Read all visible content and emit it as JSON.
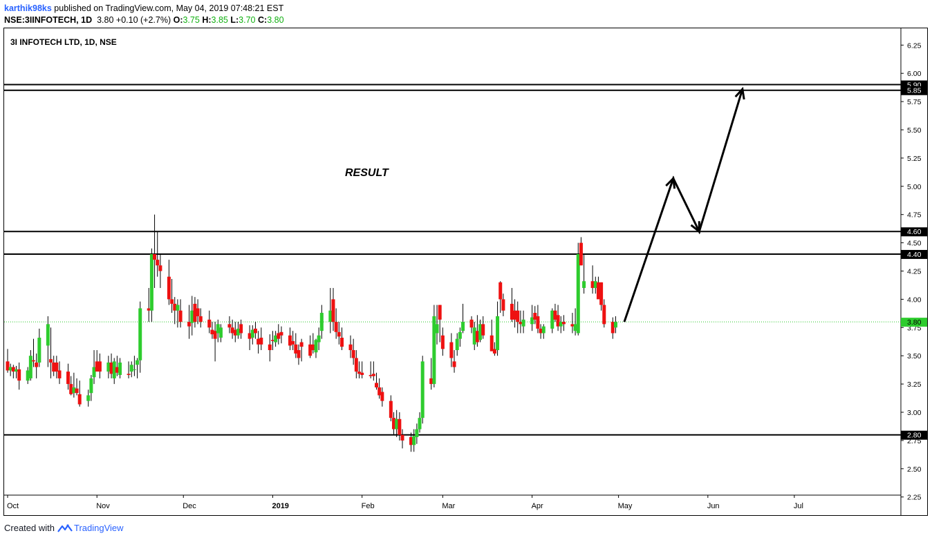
{
  "header": {
    "author": "karthik98ks",
    "published_text": "published on TradingView.com, May 04, 2019 07:48:21 EST",
    "symbol_line": "NSE:3IINFOTECH, 1D",
    "last": "3.80",
    "change": "+0.10 (+2.7%)",
    "ohlc": [
      {
        "k": "O:",
        "v": "3.75"
      },
      {
        "k": "H:",
        "v": "3.85"
      },
      {
        "k": "L:",
        "v": "3.70"
      },
      {
        "k": "C:",
        "v": "3.80"
      }
    ]
  },
  "footer": {
    "created_with": "Created with",
    "brand": "TradingView",
    "logo_icon": "tradingview-logo-icon"
  },
  "colors": {
    "up": "#2ecc2e",
    "down": "#ee1111",
    "price_line": "#26c626",
    "level_line": "#000000",
    "author": "#2962ff"
  },
  "chart_data": {
    "type": "candlestick",
    "title": "3I INFOTECH LTD, 1D, NSE",
    "annotation": "RESULT",
    "ylim": [
      2.2,
      6.32
    ],
    "y_ticks": [
      "2.25",
      "2.50",
      "2.75",
      "3.00",
      "3.25",
      "3.50",
      "3.75",
      "4.00",
      "4.25",
      "4.50",
      "4.75",
      "5.00",
      "5.25",
      "5.50",
      "5.75",
      "6.00",
      "6.25"
    ],
    "x_ticks": [
      {
        "label": "Oct",
        "day": 0
      },
      {
        "label": "Nov",
        "day": 31
      },
      {
        "label": "Dec",
        "day": 61
      },
      {
        "label": "2019",
        "day": 92,
        "bold": true
      },
      {
        "label": "Feb",
        "day": 123
      },
      {
        "label": "Mar",
        "day": 151
      },
      {
        "label": "Apr",
        "day": 182
      },
      {
        "label": "May",
        "day": 212
      },
      {
        "label": "Jun",
        "day": 243
      },
      {
        "label": "Jul",
        "day": 273
      }
    ],
    "horizontal_levels": [
      5.9,
      5.85,
      4.6,
      4.4,
      2.8
    ],
    "level_labels": [
      "5.90",
      "5.85",
      "4.60",
      "4.40",
      "2.80"
    ],
    "last_price": 3.8,
    "last_price_label": "3.80",
    "projection_path": [
      {
        "date": "2019-05-03",
        "value": 3.8
      },
      {
        "date": "2019-05-20",
        "value": 5.07
      },
      {
        "date": "2019-05-29",
        "value": 4.6
      },
      {
        "date": "2019-06-13",
        "value": 5.86
      }
    ],
    "candles_ohlc": [
      [
        3.45,
        3.56,
        3.35,
        3.37
      ],
      [
        3.37,
        3.43,
        3.32,
        3.4
      ],
      [
        3.4,
        3.42,
        3.3,
        3.36
      ],
      [
        3.36,
        3.41,
        3.3,
        3.38
      ],
      [
        3.38,
        3.44,
        3.2,
        3.28
      ],
      [
        3.28,
        3.4,
        3.25,
        3.37
      ],
      [
        3.3,
        3.55,
        3.28,
        3.5
      ],
      [
        3.46,
        3.65,
        3.4,
        3.45
      ],
      [
        3.44,
        3.52,
        3.3,
        3.4
      ],
      [
        3.44,
        3.74,
        3.4,
        3.66
      ],
      [
        3.59,
        3.85,
        3.4,
        3.78
      ],
      [
        3.47,
        3.75,
        3.3,
        3.44
      ],
      [
        3.44,
        3.5,
        3.32,
        3.36
      ],
      [
        3.44,
        3.5,
        3.3,
        3.36
      ],
      [
        3.37,
        3.45,
        3.25,
        3.3
      ],
      [
        3.36,
        3.43,
        3.2,
        3.25
      ],
      [
        3.25,
        3.32,
        3.15,
        3.16
      ],
      [
        3.17,
        3.35,
        3.13,
        3.22
      ],
      [
        3.21,
        3.3,
        3.15,
        3.17
      ],
      [
        3.16,
        3.28,
        3.05,
        3.07
      ],
      [
        3.1,
        3.2,
        3.05,
        3.15
      ],
      [
        3.17,
        3.33,
        3.1,
        3.3
      ],
      [
        3.31,
        3.55,
        3.25,
        3.4
      ],
      [
        3.45,
        3.55,
        3.38,
        3.36
      ],
      [
        3.45,
        3.52,
        3.3,
        3.36
      ],
      [
        3.36,
        3.5,
        3.3,
        3.44
      ],
      [
        3.44,
        3.52,
        3.3,
        3.34
      ],
      [
        3.3,
        3.48,
        3.25,
        3.45
      ],
      [
        3.4,
        3.5,
        3.32,
        3.35
      ],
      [
        3.33,
        3.48,
        3.3,
        3.44
      ],
      [
        3.34,
        3.45,
        3.3,
        3.33
      ],
      [
        3.36,
        3.45,
        3.31,
        3.42
      ],
      [
        3.38,
        3.5,
        3.32,
        3.38
      ],
      [
        3.42,
        3.48,
        3.3,
        3.46
      ],
      [
        3.46,
        3.98,
        3.35,
        3.92
      ],
      [
        3.92,
        4.1,
        3.8,
        3.9
      ],
      [
        3.9,
        4.45,
        3.8,
        4.4
      ],
      [
        4.4,
        4.75,
        4.1,
        4.35
      ],
      [
        4.35,
        4.6,
        4.2,
        4.3
      ],
      [
        4.3,
        4.4,
        4.1,
        4.25
      ],
      [
        4.2,
        4.35,
        3.95,
        4.0
      ],
      [
        4.0,
        4.18,
        3.88,
        3.96
      ],
      [
        3.96,
        4.02,
        3.78,
        3.9
      ],
      [
        3.9,
        4.0,
        3.75,
        3.95
      ],
      [
        3.9,
        4.0,
        3.75,
        3.8
      ],
      [
        3.8,
        3.95,
        3.65,
        3.76
      ],
      [
        3.79,
        4.03,
        3.68,
        3.9
      ],
      [
        3.96,
        4.02,
        3.75,
        3.8
      ],
      [
        3.92,
        4.0,
        3.78,
        3.85
      ],
      [
        3.85,
        3.92,
        3.75,
        3.8
      ],
      [
        3.82,
        3.9,
        3.7,
        3.75
      ],
      [
        3.73,
        3.8,
        3.65,
        3.69
      ],
      [
        3.72,
        3.8,
        3.45,
        3.65
      ],
      [
        3.7,
        3.82,
        3.62,
        3.78
      ],
      [
        3.66,
        3.78,
        3.62,
        3.75
      ],
      [
        3.78,
        3.85,
        3.7,
        3.75
      ],
      [
        3.75,
        3.82,
        3.65,
        3.7
      ],
      [
        3.73,
        3.8,
        3.62,
        3.68
      ],
      [
        3.68,
        3.8,
        3.65,
        3.74
      ],
      [
        3.78,
        3.82,
        3.65,
        3.7
      ],
      [
        3.7,
        3.77,
        3.55,
        3.65
      ],
      [
        3.66,
        3.77,
        3.6,
        3.73
      ],
      [
        3.74,
        3.8,
        3.65,
        3.7
      ],
      [
        3.65,
        3.72,
        3.52,
        3.6
      ],
      [
        3.66,
        3.75,
        3.55,
        3.6
      ],
      [
        3.6,
        3.69,
        3.45,
        3.55
      ],
      [
        3.64,
        3.72,
        3.55,
        3.63
      ],
      [
        3.62,
        3.72,
        3.58,
        3.68
      ],
      [
        3.7,
        3.78,
        3.6,
        3.65
      ],
      [
        3.71,
        3.76,
        3.61,
        3.68
      ],
      [
        3.68,
        3.75,
        3.55,
        3.59
      ],
      [
        3.63,
        3.72,
        3.55,
        3.6
      ],
      [
        3.6,
        3.7,
        3.48,
        3.52
      ],
      [
        3.55,
        3.6,
        3.42,
        3.48
      ],
      [
        3.62,
        3.65,
        3.45,
        3.58
      ],
      [
        3.6,
        3.68,
        3.48,
        3.5
      ],
      [
        3.6,
        3.7,
        3.52,
        3.55
      ],
      [
        3.53,
        3.65,
        3.48,
        3.64
      ],
      [
        3.62,
        3.75,
        3.55,
        3.68
      ],
      [
        3.72,
        3.95,
        3.65,
        3.88
      ],
      [
        3.8,
        4.1,
        3.7,
        3.9
      ],
      [
        4.0,
        4.1,
        3.72,
        3.8
      ],
      [
        3.8,
        3.92,
        3.65,
        3.71
      ],
      [
        3.71,
        3.8,
        3.6,
        3.67
      ],
      [
        3.66,
        3.75,
        3.55,
        3.58
      ],
      [
        3.6,
        3.68,
        3.48,
        3.55
      ],
      [
        3.55,
        3.65,
        3.42,
        3.48
      ],
      [
        3.48,
        3.55,
        3.3,
        3.36
      ],
      [
        3.36,
        3.45,
        3.3,
        3.34
      ],
      [
        3.35,
        3.45,
        3.3,
        3.33
      ],
      [
        3.33,
        3.45,
        3.3,
        3.32
      ],
      [
        3.34,
        3.45,
        3.28,
        3.32
      ],
      [
        3.26,
        3.35,
        3.2,
        3.22
      ],
      [
        3.22,
        3.3,
        3.12,
        3.15
      ],
      [
        3.18,
        3.22,
        3.05,
        3.1
      ],
      [
        3.1,
        3.15,
        2.92,
        2.95
      ],
      [
        2.95,
        3.0,
        2.8,
        2.85
      ],
      [
        2.85,
        3.02,
        2.78,
        2.94
      ],
      [
        2.94,
        3.0,
        2.75,
        2.8
      ],
      [
        2.8,
        2.85,
        2.68,
        2.75
      ],
      [
        2.78,
        2.82,
        2.65,
        2.71
      ],
      [
        2.71,
        2.85,
        2.65,
        2.79
      ],
      [
        2.78,
        2.9,
        2.72,
        2.85
      ],
      [
        2.85,
        3.0,
        2.82,
        2.95
      ],
      [
        2.95,
        3.5,
        2.9,
        3.45
      ],
      [
        3.3,
        3.48,
        3.2,
        3.25
      ],
      [
        3.25,
        3.95,
        3.22,
        3.85
      ],
      [
        3.7,
        3.95,
        3.6,
        3.78
      ],
      [
        3.95,
        3.95,
        3.62,
        3.82
      ],
      [
        3.68,
        3.75,
        3.5,
        3.56
      ],
      [
        3.62,
        3.7,
        3.4,
        3.48
      ],
      [
        3.45,
        3.55,
        3.35,
        3.4
      ],
      [
        3.55,
        3.7,
        3.5,
        3.65
      ],
      [
        3.65,
        3.75,
        3.58,
        3.71
      ],
      [
        3.72,
        3.96,
        3.7,
        3.8
      ],
      [
        3.82,
        3.85,
        3.7,
        3.75
      ],
      [
        3.6,
        3.8,
        3.55,
        3.75
      ],
      [
        3.72,
        3.86,
        3.58,
        3.62
      ],
      [
        3.64,
        3.82,
        3.62,
        3.78
      ],
      [
        3.78,
        3.85,
        3.65,
        3.68
      ],
      [
        3.68,
        3.82,
        3.6,
        3.54
      ],
      [
        3.56,
        3.62,
        3.5,
        3.52
      ],
      [
        3.55,
        3.98,
        3.5,
        3.85
      ],
      [
        4.15,
        4.16,
        3.88,
        4.0
      ],
      [
        4.0,
        4.05,
        3.85,
        3.9
      ],
      [
        3.96,
        4.1,
        3.8,
        3.82
      ],
      [
        3.9,
        4.0,
        3.75,
        3.82
      ],
      [
        3.9,
        3.98,
        3.7,
        3.8
      ],
      [
        3.8,
        3.9,
        3.7,
        3.78
      ],
      [
        3.76,
        3.9,
        3.7,
        3.82
      ],
      [
        3.78,
        3.95,
        3.72,
        3.84
      ],
      [
        3.88,
        3.94,
        3.78,
        3.82
      ],
      [
        3.85,
        3.95,
        3.7,
        3.74
      ],
      [
        3.74,
        3.78,
        3.65,
        3.7
      ],
      [
        3.7,
        3.78,
        3.65,
        3.76
      ],
      [
        3.74,
        3.92,
        3.7,
        3.9
      ],
      [
        3.9,
        3.96,
        3.8,
        3.82
      ],
      [
        3.86,
        3.95,
        3.72,
        3.76
      ],
      [
        3.76,
        3.85,
        3.7,
        3.8
      ],
      [
        3.8,
        3.86,
        3.72,
        3.78
      ],
      [
        3.78,
        3.88,
        3.7,
        3.76
      ],
      [
        3.72,
        3.92,
        3.68,
        3.78
      ],
      [
        3.7,
        4.5,
        3.68,
        4.4
      ],
      [
        4.5,
        4.55,
        4.3,
        4.3
      ],
      [
        4.1,
        4.4,
        4.05,
        4.16
      ],
      [
        4.16,
        4.3,
        4.05,
        4.1
      ],
      [
        4.1,
        4.2,
        4.05,
        4.16
      ],
      [
        4.15,
        4.2,
        4.05,
        4.0
      ],
      [
        4.15,
        4.15,
        3.9,
        3.95
      ],
      [
        3.95,
        4.0,
        3.75,
        3.78
      ],
      [
        3.8,
        3.84,
        3.65,
        3.7
      ],
      [
        3.75,
        3.85,
        3.7,
        3.8
      ]
    ]
  }
}
